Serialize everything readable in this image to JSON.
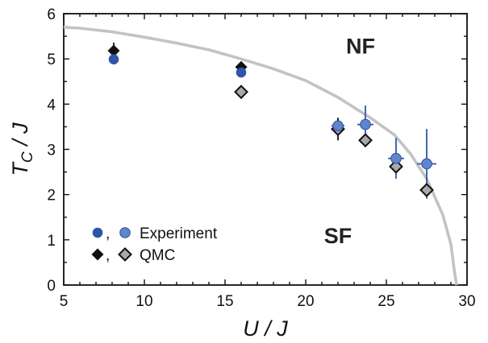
{
  "chart_data": {
    "type": "scatter",
    "xlabel": "U / J",
    "ylabel": "T_C / J",
    "xlim": [
      5,
      30
    ],
    "ylim": [
      0,
      6
    ],
    "xticks": [
      5,
      10,
      15,
      20,
      25,
      30
    ],
    "yticks": [
      0,
      1,
      2,
      3,
      4,
      5,
      6
    ],
    "grid": false,
    "regions": [
      {
        "label": "NF",
        "x": 23.4,
        "y": 5.3
      },
      {
        "label": "SF",
        "x": 22.0,
        "y": 1.1
      }
    ],
    "legend": {
      "placement": "bottom-left",
      "entries": [
        {
          "markers": [
            "dark-blue-circle",
            "light-blue-circle"
          ],
          "sep": ",",
          "label": "Experiment"
        },
        {
          "markers": [
            "black-diamond",
            "gray-diamond"
          ],
          "sep": ",",
          "label": "QMC"
        }
      ]
    },
    "colors": {
      "boundary": "#c3c3c3",
      "exp_dark": "#2d56a8",
      "exp_light": "#5f86cd",
      "qmc_dark": "#111111",
      "qmc_light": "#a9a9a9",
      "errorbar": "#2d56a8"
    },
    "series": [
      {
        "style": "boundary-line",
        "points": [
          [
            5.0,
            5.7
          ],
          [
            6.0,
            5.68
          ],
          [
            8.0,
            5.6
          ],
          [
            10.0,
            5.48
          ],
          [
            12.0,
            5.35
          ],
          [
            14.0,
            5.2
          ],
          [
            16.0,
            5.0
          ],
          [
            18.0,
            4.78
          ],
          [
            20.0,
            4.52
          ],
          [
            22.0,
            4.15
          ],
          [
            24.0,
            3.7
          ],
          [
            25.5,
            3.32
          ],
          [
            26.5,
            2.9
          ],
          [
            27.5,
            2.35
          ],
          [
            28.5,
            1.55
          ],
          [
            29.0,
            0.9
          ],
          [
            29.2,
            0.35
          ],
          [
            29.35,
            0.0
          ]
        ]
      },
      {
        "style": "exp-dark",
        "points": [
          {
            "x": 8.1,
            "y": 4.99
          },
          {
            "x": 16.0,
            "y": 4.7
          }
        ]
      },
      {
        "style": "exp-light",
        "points": [
          {
            "x": 22.0,
            "y": 3.52,
            "xerr": 0.4,
            "yerr": 0.15
          },
          {
            "x": 23.7,
            "y": 3.55,
            "xerr": 0.5,
            "yerr": 0.42
          },
          {
            "x": 25.6,
            "y": 2.8,
            "xerr": 0.5,
            "yerr": 0.45
          },
          {
            "x": 27.5,
            "y": 2.68,
            "xerr": 0.6,
            "yerr": 0.77
          }
        ]
      },
      {
        "style": "qmc-dark",
        "points": [
          {
            "x": 8.1,
            "y": 5.18,
            "yerr": 0.18
          },
          {
            "x": 16.0,
            "y": 4.82,
            "yerr": 0.12
          }
        ]
      },
      {
        "style": "qmc-light",
        "points": [
          {
            "x": 16.0,
            "y": 4.27
          },
          {
            "x": 22.0,
            "y": 3.45,
            "yerr": 0.25
          },
          {
            "x": 23.7,
            "y": 3.2
          },
          {
            "x": 25.6,
            "y": 2.62
          },
          {
            "x": 27.5,
            "y": 2.1
          }
        ]
      }
    ]
  }
}
